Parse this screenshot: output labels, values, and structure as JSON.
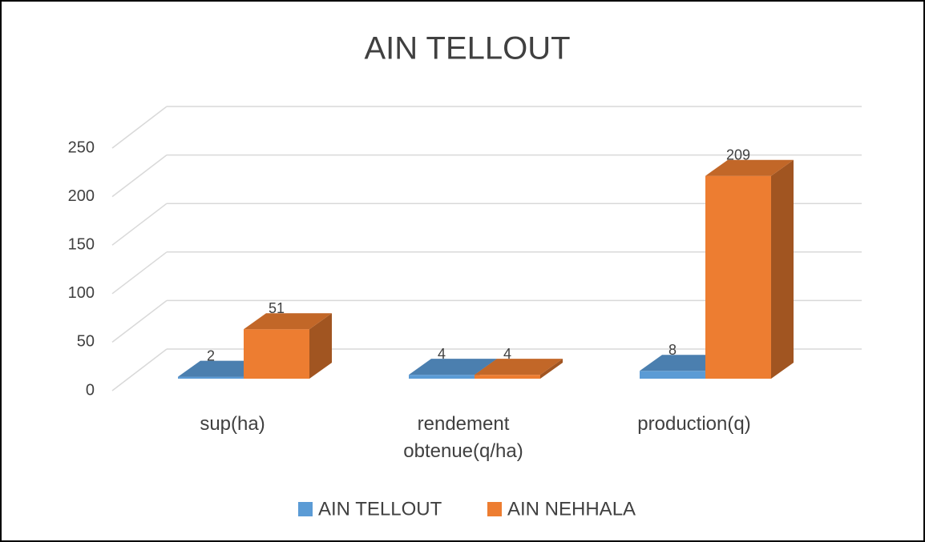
{
  "chart_data": {
    "type": "bar3d",
    "title": "AIN TELLOUT",
    "categories": [
      "sup(ha)",
      "rendement obtenue(q/ha)",
      "production(q)"
    ],
    "series": [
      {
        "name": "AIN TELLOUT",
        "color": "#5b9bd5",
        "values": [
          2,
          4,
          8
        ]
      },
      {
        "name": "AIN NEHHALA",
        "color": "#ed7d31",
        "values": [
          51,
          4,
          209
        ]
      }
    ],
    "ylim": [
      0,
      250
    ],
    "yticks": [
      0,
      50,
      100,
      150,
      200,
      250
    ],
    "grid": true,
    "legend": "bottom"
  }
}
